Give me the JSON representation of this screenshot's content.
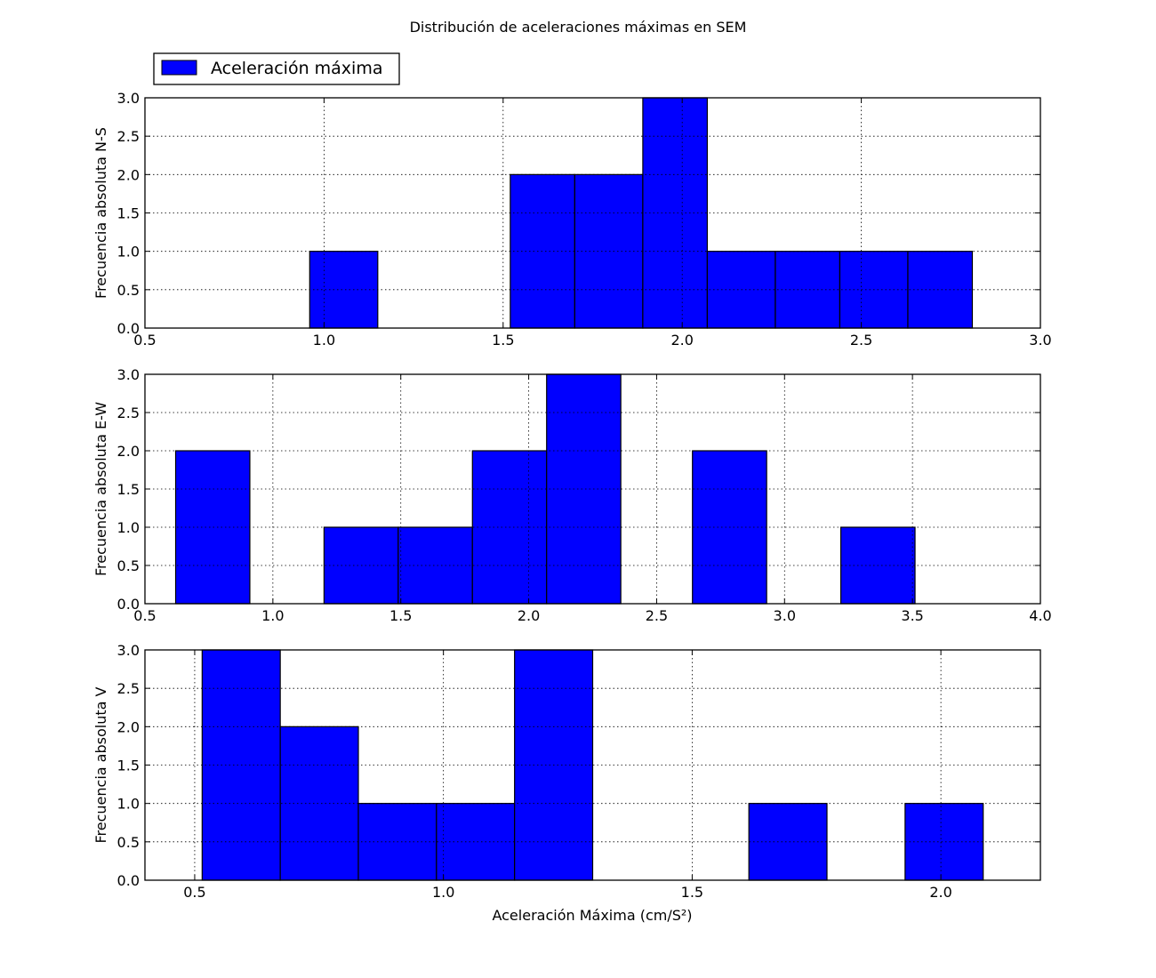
{
  "chart_data": {
    "type": "bar",
    "title": "Distribución de aceleraciones máximas en SEM",
    "xlabel": "Aceleración Máxima (cm/S²)",
    "legend": {
      "label": "Aceleración máxima",
      "placement": "top-left",
      "color": "#0000ff"
    },
    "bar_color": "#0000ff",
    "grid": true,
    "panels": [
      {
        "ylabel": "Frecuencia absoluta N-S",
        "xlim": [
          0.5,
          3.0
        ],
        "ylim": [
          0,
          3
        ],
        "xticks": [
          "0.5",
          "1.0",
          "1.5",
          "2.0",
          "2.5",
          "3.0"
        ],
        "yticks": [
          "0.0",
          "0.5",
          "1.0",
          "1.5",
          "2.0",
          "2.5",
          "3.0"
        ],
        "bins": [
          {
            "x0": 0.96,
            "x1": 1.15,
            "count": 1
          },
          {
            "x0": 1.52,
            "x1": 1.7,
            "count": 2
          },
          {
            "x0": 1.7,
            "x1": 1.89,
            "count": 2
          },
          {
            "x0": 1.89,
            "x1": 2.07,
            "count": 3
          },
          {
            "x0": 2.07,
            "x1": 2.26,
            "count": 1
          },
          {
            "x0": 2.26,
            "x1": 2.44,
            "count": 1
          },
          {
            "x0": 2.44,
            "x1": 2.63,
            "count": 1
          },
          {
            "x0": 2.63,
            "x1": 2.81,
            "count": 1
          }
        ]
      },
      {
        "ylabel": "Frecuencia absoluta E-W",
        "xlim": [
          0.5,
          4.0
        ],
        "ylim": [
          0,
          3
        ],
        "xticks": [
          "0.5",
          "1.0",
          "1.5",
          "2.0",
          "2.5",
          "3.0",
          "3.5",
          "4.0"
        ],
        "yticks": [
          "0.0",
          "0.5",
          "1.0",
          "1.5",
          "2.0",
          "2.5",
          "3.0"
        ],
        "bins": [
          {
            "x0": 0.62,
            "x1": 0.91,
            "count": 2
          },
          {
            "x0": 1.2,
            "x1": 1.49,
            "count": 1
          },
          {
            "x0": 1.49,
            "x1": 1.78,
            "count": 1
          },
          {
            "x0": 1.78,
            "x1": 2.07,
            "count": 2
          },
          {
            "x0": 2.07,
            "x1": 2.36,
            "count": 3
          },
          {
            "x0": 2.64,
            "x1": 2.93,
            "count": 2
          },
          {
            "x0": 3.22,
            "x1": 3.51,
            "count": 1
          }
        ]
      },
      {
        "ylabel": "Frecuencia absoluta V",
        "xlim": [
          0.4,
          2.2
        ],
        "ylim": [
          0,
          3
        ],
        "xticks": [
          "0.5",
          "1.0",
          "1.5",
          "2.0"
        ],
        "xtick_values": [
          0.5,
          1.0,
          1.5,
          2.0
        ],
        "yticks": [
          "0.0",
          "0.5",
          "1.0",
          "1.5",
          "2.0",
          "2.5",
          "3.0"
        ],
        "bins": [
          {
            "x0": 0.515,
            "x1": 0.672,
            "count": 3
          },
          {
            "x0": 0.672,
            "x1": 0.829,
            "count": 2
          },
          {
            "x0": 0.829,
            "x1": 0.986,
            "count": 1
          },
          {
            "x0": 0.986,
            "x1": 1.143,
            "count": 1
          },
          {
            "x0": 1.143,
            "x1": 1.3,
            "count": 3
          },
          {
            "x0": 1.614,
            "x1": 1.771,
            "count": 1
          },
          {
            "x0": 1.928,
            "x1": 2.085,
            "count": 1
          }
        ]
      }
    ]
  }
}
